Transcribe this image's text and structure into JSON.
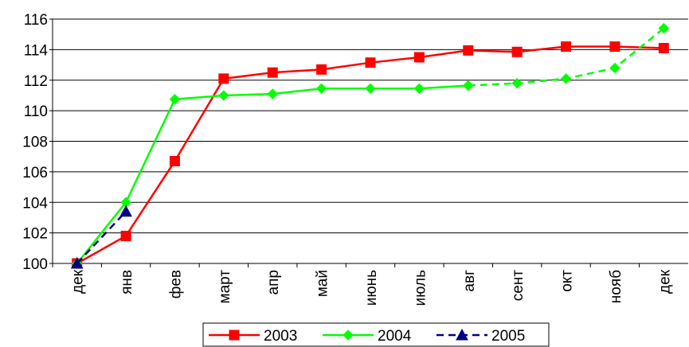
{
  "chart_data": {
    "type": "line",
    "categories": [
      "дек",
      "янв",
      "фев",
      "март",
      "апр",
      "май",
      "июнь",
      "июль",
      "авг",
      "сент",
      "окт",
      "нояб",
      "дек"
    ],
    "series": [
      {
        "name": "2003",
        "color": "#ff0000",
        "marker": "square",
        "values": [
          100,
          101.8,
          106.7,
          112.1,
          112.5,
          112.7,
          113.15,
          113.5,
          113.95,
          113.85,
          114.2,
          114.2,
          114.1
        ]
      },
      {
        "name": "2004",
        "color": "#00ff00",
        "marker": "diamond",
        "dashed_from": 8,
        "values": [
          100,
          104,
          110.75,
          111.0,
          111.1,
          111.45,
          111.45,
          111.45,
          111.65,
          111.8,
          112.1,
          112.8,
          115.4
        ]
      },
      {
        "name": "2005",
        "color": "#000080",
        "marker": "triangle",
        "dashed": true,
        "values": [
          100,
          103.4,
          null,
          null,
          null,
          null,
          null,
          null,
          null,
          null,
          null,
          null,
          null
        ]
      }
    ],
    "ylim": [
      100,
      116
    ],
    "yticks": [
      100,
      102,
      104,
      106,
      108,
      110,
      112,
      114,
      116
    ],
    "grid": true,
    "legend": "bottom"
  }
}
